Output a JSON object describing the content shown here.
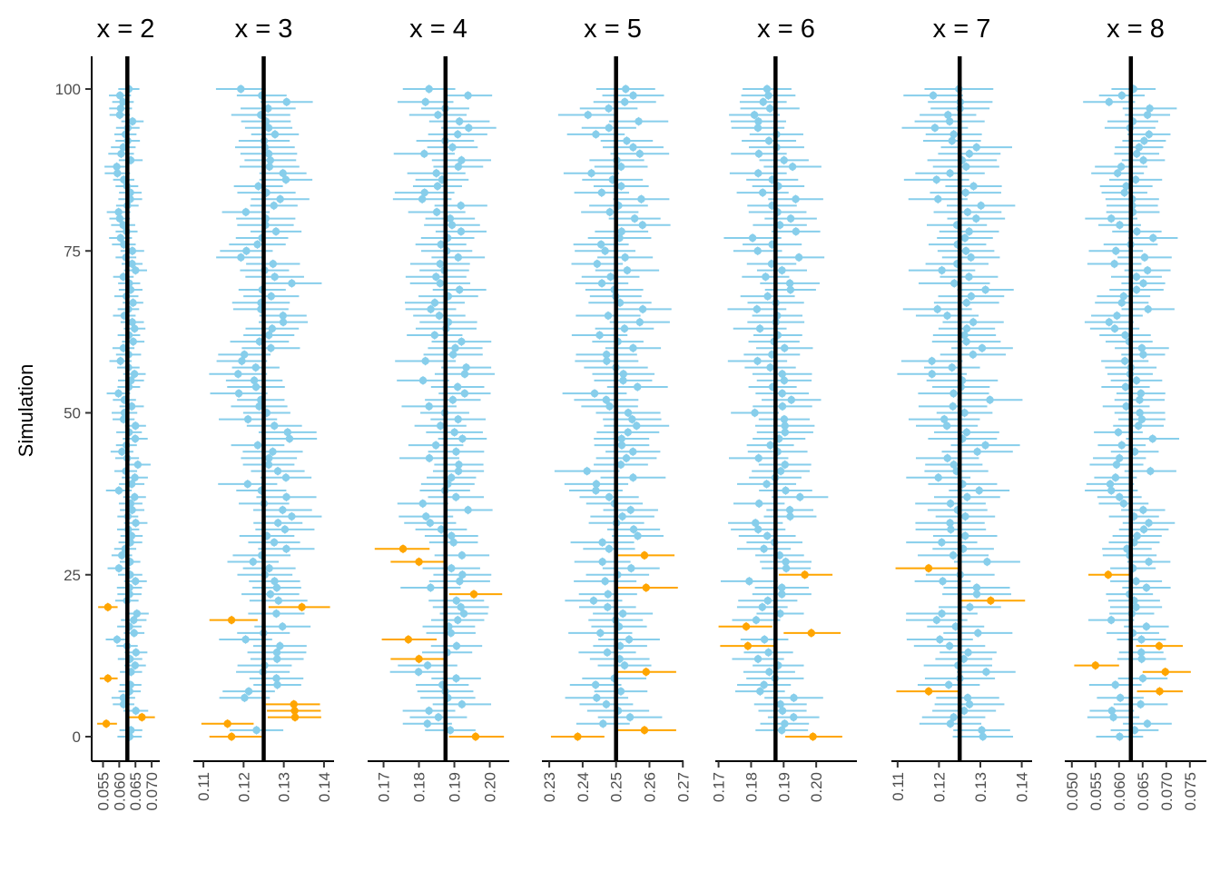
{
  "chart_data": {
    "type": "scatter",
    "subtype": "faceted interval plot (point estimates with confidence intervals)",
    "ylabel": "Simulation",
    "xlabel": "",
    "ylim": [
      -3,
      105
    ],
    "y_ticks": [
      0,
      25,
      50,
      75,
      100
    ],
    "n_simulations": 100,
    "colors": {
      "covers_truth": "#87CEEB",
      "misses_truth": "#FFA500",
      "truth_line": "#000000",
      "axis": "#000000",
      "tick_label": "#4d4d4d"
    },
    "legend": "none",
    "grid": false,
    "panels": [
      {
        "title": "x = 2",
        "truth": 0.0625,
        "xlim": [
          0.0515,
          0.0725
        ],
        "x_ticks": [
          "0.055",
          "0.060",
          "0.065",
          "0.070"
        ],
        "x_tick_values": [
          0.055,
          0.06,
          0.065,
          0.07
        ],
        "half_width": 0.0035,
        "spread": 0.0022,
        "misses": [
          {
            "sim": 20,
            "estimate": 0.0565,
            "lower": 0.0535,
            "upper": 0.0595
          },
          {
            "sim": 9,
            "estimate": 0.0565,
            "lower": 0.054,
            "upper": 0.0595
          },
          {
            "sim": 3,
            "estimate": 0.067,
            "lower": 0.063,
            "upper": 0.071
          },
          {
            "sim": 2,
            "estimate": 0.056,
            "lower": 0.0532,
            "upper": 0.0593
          }
        ]
      },
      {
        "title": "x = 3",
        "truth": 0.125,
        "xlim": [
          0.1075,
          0.1425
        ],
        "x_ticks": [
          "0.11",
          "0.12",
          "0.13",
          "0.14"
        ],
        "x_tick_values": [
          0.11,
          0.12,
          0.13,
          0.14
        ],
        "half_width": 0.0065,
        "spread": 0.0042,
        "misses": [
          {
            "sim": 20,
            "estimate": 0.1345,
            "lower": 0.1262,
            "upper": 0.1415
          },
          {
            "sim": 18,
            "estimate": 0.117,
            "lower": 0.1115,
            "upper": 0.1235
          },
          {
            "sim": 5,
            "estimate": 0.1325,
            "lower": 0.1255,
            "upper": 0.139
          },
          {
            "sim": 4,
            "estimate": 0.1327,
            "lower": 0.1258,
            "upper": 0.1392
          },
          {
            "sim": 3,
            "estimate": 0.1328,
            "lower": 0.126,
            "upper": 0.1393
          },
          {
            "sim": 2,
            "estimate": 0.116,
            "lower": 0.1095,
            "upper": 0.1225
          },
          {
            "sim": 0,
            "estimate": 0.117,
            "lower": 0.1115,
            "upper": 0.1245
          }
        ]
      },
      {
        "title": "x = 4",
        "truth": 0.1875,
        "xlim": [
          0.1655,
          0.2055
        ],
        "x_ticks": [
          "0.17",
          "0.18",
          "0.19",
          "0.20"
        ],
        "x_tick_values": [
          0.17,
          0.18,
          0.19,
          0.2
        ],
        "half_width": 0.0075,
        "spread": 0.005,
        "misses": [
          {
            "sim": 29,
            "estimate": 0.1755,
            "lower": 0.1675,
            "upper": 0.183
          },
          {
            "sim": 27,
            "estimate": 0.18,
            "lower": 0.172,
            "upper": 0.187
          },
          {
            "sim": 22,
            "estimate": 0.1955,
            "lower": 0.1885,
            "upper": 0.2035
          },
          {
            "sim": 15,
            "estimate": 0.177,
            "lower": 0.1695,
            "upper": 0.185
          },
          {
            "sim": 12,
            "estimate": 0.18,
            "lower": 0.172,
            "upper": 0.187
          },
          {
            "sim": 0,
            "estimate": 0.196,
            "lower": 0.1885,
            "upper": 0.204
          }
        ]
      },
      {
        "title": "x = 5",
        "truth": 0.25,
        "xlim": [
          0.2278,
          0.2702
        ],
        "x_ticks": [
          "0.23",
          "0.24",
          "0.25",
          "0.26",
          "0.27"
        ],
        "x_tick_values": [
          0.23,
          0.24,
          0.25,
          0.26,
          0.27
        ],
        "half_width": 0.0085,
        "spread": 0.0055,
        "misses": [
          {
            "sim": 28,
            "estimate": 0.2585,
            "lower": 0.2505,
            "upper": 0.2675
          },
          {
            "sim": 23,
            "estimate": 0.259,
            "lower": 0.2505,
            "upper": 0.2685
          },
          {
            "sim": 10,
            "estimate": 0.259,
            "lower": 0.2505,
            "upper": 0.268
          },
          {
            "sim": 1,
            "estimate": 0.2585,
            "lower": 0.2505,
            "upper": 0.268
          },
          {
            "sim": 0,
            "estimate": 0.2385,
            "lower": 0.2305,
            "upper": 0.2465
          }
        ]
      },
      {
        "title": "x = 6",
        "truth": 0.1875,
        "xlim": [
          0.169,
          0.2125
        ],
        "x_ticks": [
          "0.17",
          "0.18",
          "0.19",
          "0.20"
        ],
        "x_tick_values": [
          0.17,
          0.18,
          0.19,
          0.2
        ],
        "half_width": 0.008,
        "spread": 0.0052,
        "misses": [
          {
            "sim": 25,
            "estimate": 0.1965,
            "lower": 0.1885,
            "upper": 0.205
          },
          {
            "sim": 17,
            "estimate": 0.1785,
            "lower": 0.17,
            "upper": 0.1865
          },
          {
            "sim": 16,
            "estimate": 0.1985,
            "lower": 0.19,
            "upper": 0.2075
          },
          {
            "sim": 14,
            "estimate": 0.179,
            "lower": 0.1705,
            "upper": 0.1875
          },
          {
            "sim": 0,
            "estimate": 0.199,
            "lower": 0.1905,
            "upper": 0.208
          }
        ]
      },
      {
        "title": "x = 7",
        "truth": 0.125,
        "xlim": [
          0.1085,
          0.1425
        ],
        "x_ticks": [
          "0.11",
          "0.12",
          "0.13",
          "0.14"
        ],
        "x_tick_values": [
          0.11,
          0.12,
          0.13,
          0.14
        ],
        "half_width": 0.0075,
        "spread": 0.0045,
        "misses": [
          {
            "sim": 26,
            "estimate": 0.1175,
            "lower": 0.1095,
            "upper": 0.1255
          },
          {
            "sim": 21,
            "estimate": 0.1325,
            "lower": 0.125,
            "upper": 0.1408
          },
          {
            "sim": 7,
            "estimate": 0.1175,
            "lower": 0.1097,
            "upper": 0.1255
          }
        ]
      },
      {
        "title": "x = 8",
        "truth": 0.0625,
        "xlim": [
          0.0485,
          0.0785
        ],
        "x_ticks": [
          "0.050",
          "0.055",
          "0.060",
          "0.065",
          "0.070",
          "0.075"
        ],
        "x_tick_values": [
          0.05,
          0.055,
          0.06,
          0.065,
          0.07,
          0.075
        ],
        "half_width": 0.005,
        "spread": 0.0032,
        "misses": [
          {
            "sim": 25,
            "estimate": 0.0577,
            "lower": 0.0535,
            "upper": 0.0625
          },
          {
            "sim": 14,
            "estimate": 0.0685,
            "lower": 0.0636,
            "upper": 0.0735
          },
          {
            "sim": 11,
            "estimate": 0.055,
            "lower": 0.0505,
            "upper": 0.06
          },
          {
            "sim": 10,
            "estimate": 0.0698,
            "lower": 0.065,
            "upper": 0.0752
          },
          {
            "sim": 7,
            "estimate": 0.0686,
            "lower": 0.0638,
            "upper": 0.0735
          }
        ]
      }
    ]
  }
}
